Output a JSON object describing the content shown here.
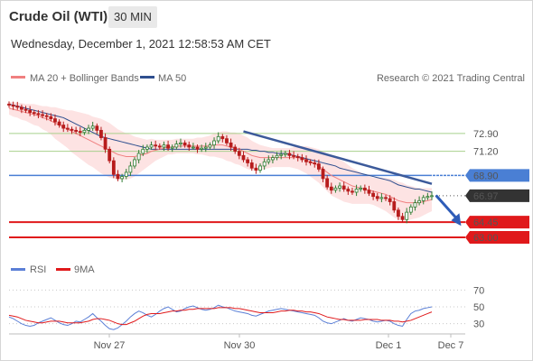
{
  "header": {
    "title": "Crude Oil (WTI)",
    "timeframe": "30 MIN"
  },
  "datetime": "Wednesday, December 1, 2021 12:58:53 AM CET",
  "legend": {
    "ma20": "MA 20 + Bollinger Bands",
    "ma50": "MA 50",
    "credit": "Research © 2021 Trading Central",
    "rsi": "RSI",
    "rsi_ma": "9MA"
  },
  "colors": {
    "ma20": "#f08080",
    "ma50": "#2f4f8f",
    "band": "#fde3e3",
    "support": "#e0191b",
    "pivot": "#4a7fd4",
    "resistance": "#a8d08d",
    "current": "#333333",
    "trend": "#3c5a9a",
    "bull": "#2e7d32",
    "bear": "#b71c1c",
    "rsi": "#5b7fd6",
    "rsi_ma": "#e0191b"
  },
  "chart_data": {
    "type": "candlestick",
    "instrument": "Crude Oil (WTI)",
    "interval": "30 MIN",
    "ylim": [
      61.8,
      76.5
    ],
    "x_ticks": [
      "Nov 27",
      "Nov 30",
      "Dec 1",
      "Dec 7"
    ],
    "levels": [
      {
        "label": "72.90",
        "value": 72.9,
        "kind": "resistance"
      },
      {
        "label": "71.20",
        "value": 71.2,
        "kind": "resistance"
      },
      {
        "label": "68.90",
        "value": 68.9,
        "kind": "pivot"
      },
      {
        "label": "66.97",
        "value": 66.97,
        "kind": "current"
      },
      {
        "label": "64.45",
        "value": 64.45,
        "kind": "support"
      },
      {
        "label": "63.00",
        "value": 63.0,
        "kind": "support"
      }
    ],
    "close": [
      75.6,
      75.5,
      75.4,
      75.2,
      75.1,
      74.9,
      74.8,
      74.7,
      74.6,
      74.5,
      74.3,
      74.0,
      73.7,
      73.4,
      73.3,
      73.2,
      73.1,
      73.0,
      73.2,
      73.4,
      73.6,
      73.2,
      72.5,
      71.4,
      70.3,
      69.0,
      68.6,
      68.8,
      69.2,
      69.8,
      70.4,
      71.0,
      71.4,
      71.6,
      71.8,
      71.7,
      71.6,
      71.8,
      71.5,
      71.6,
      71.9,
      72.0,
      71.8,
      71.6,
      71.6,
      71.4,
      71.5,
      71.6,
      71.8,
      72.2,
      72.6,
      72.4,
      72.0,
      71.6,
      71.2,
      70.8,
      70.4,
      70.1,
      69.6,
      69.4,
      69.8,
      70.2,
      70.4,
      70.6,
      70.8,
      70.9,
      71.0,
      70.8,
      70.7,
      70.6,
      70.4,
      70.2,
      70.1,
      70.0,
      69.5,
      68.6,
      67.8,
      67.5,
      67.7,
      67.9,
      67.6,
      67.4,
      67.3,
      67.6,
      67.7,
      67.5,
      67.2,
      66.9,
      66.7,
      66.8,
      66.7,
      66.4,
      65.6,
      65.0,
      64.7,
      65.4,
      65.9,
      66.3,
      66.5,
      66.8,
      66.9,
      66.97
    ],
    "ma20": [
      75.3,
      75.2,
      75.1,
      75.0,
      74.9,
      74.8,
      74.7,
      74.6,
      74.4,
      74.3,
      74.1,
      73.9,
      73.7,
      73.5,
      73.3,
      73.1,
      72.9,
      72.7,
      72.5,
      72.3,
      72.1,
      71.9,
      71.7,
      71.5,
      71.3,
      71.1,
      70.9,
      70.8,
      70.7,
      70.7,
      70.7,
      70.8,
      70.9,
      71.0,
      71.2,
      71.3,
      71.4,
      71.5,
      71.6,
      71.6,
      71.7,
      71.7,
      71.7,
      71.7,
      71.7,
      71.7,
      71.7,
      71.7,
      71.7,
      71.8,
      71.8,
      71.8,
      71.7,
      71.6,
      71.5,
      71.4,
      71.2,
      71.0,
      70.8,
      70.7,
      70.6,
      70.6,
      70.6,
      70.6,
      70.6,
      70.6,
      70.6,
      70.6,
      70.6,
      70.6,
      70.5,
      70.4,
      70.2,
      70.0,
      69.8,
      69.5,
      69.2,
      68.9,
      68.7,
      68.5,
      68.3,
      68.1,
      67.9,
      67.8,
      67.7,
      67.6,
      67.5,
      67.4,
      67.3,
      67.2,
      67.1,
      66.9,
      66.7,
      66.5,
      66.4,
      66.3,
      66.3,
      66.3,
      66.3,
      66.4,
      66.5,
      66.6
    ],
    "ma50": [
      75.7,
      75.6,
      75.5,
      75.4,
      75.3,
      75.2,
      75.1,
      75.0,
      74.9,
      74.8,
      74.7,
      74.6,
      74.5,
      74.4,
      74.2,
      74.0,
      73.8,
      73.6,
      73.4,
      73.2,
      73.0,
      72.8,
      72.6,
      72.5,
      72.4,
      72.3,
      72.2,
      72.1,
      72.0,
      71.9,
      71.8,
      71.7,
      71.6,
      71.5,
      71.4,
      71.4,
      71.4,
      71.4,
      71.4,
      71.4,
      71.4,
      71.4,
      71.4,
      71.4,
      71.4,
      71.4,
      71.4,
      71.4,
      71.4,
      71.4,
      71.4,
      71.4,
      71.4,
      71.4,
      71.4,
      71.4,
      71.4,
      71.4,
      71.3,
      71.3,
      71.2,
      71.2,
      71.1,
      71.1,
      71.0,
      71.0,
      71.0,
      70.9,
      70.8,
      70.7,
      70.6,
      70.5,
      70.4,
      70.3,
      70.2,
      70.1,
      70.0,
      69.9,
      69.8,
      69.6,
      69.5,
      69.4,
      69.3,
      69.2,
      69.1,
      69.0,
      68.9,
      68.8,
      68.7,
      68.6,
      68.5,
      68.4,
      68.2,
      68.0,
      67.9,
      67.8,
      67.7,
      67.6,
      67.6,
      67.5,
      67.4,
      67.3
    ],
    "band_width": [
      0.6,
      0.7,
      0.7,
      0.8,
      0.8,
      0.9,
      1.0,
      1.0,
      1.1,
      1.2,
      1.3,
      1.5,
      1.6,
      1.7,
      1.8,
      2.0,
      2.1,
      2.2,
      2.3,
      2.4,
      2.4,
      2.5,
      2.6,
      2.6,
      2.6,
      2.5,
      2.4,
      2.3,
      2.2,
      2.1,
      1.9,
      1.7,
      1.5,
      1.3,
      1.2,
      1.0,
      0.9,
      0.8,
      0.7,
      0.7,
      0.7,
      0.7,
      0.7,
      0.7,
      0.7,
      0.8,
      0.8,
      0.9,
      1.0,
      1.1,
      1.2,
      1.3,
      1.4,
      1.4,
      1.5,
      1.5,
      1.5,
      1.5,
      1.4,
      1.3,
      1.2,
      1.1,
      1.0,
      0.9,
      0.9,
      0.9,
      0.9,
      0.9,
      1.0,
      1.1,
      1.2,
      1.3,
      1.4,
      1.5,
      1.6,
      1.7,
      1.8,
      1.9,
      1.9,
      1.9,
      1.9,
      1.8,
      1.7,
      1.6,
      1.5,
      1.4,
      1.3,
      1.3,
      1.4,
      1.5,
      1.6,
      1.7,
      1.8,
      1.8,
      1.8,
      1.7,
      1.6,
      1.5,
      1.4,
      1.3,
      1.2,
      1.1
    ],
    "trend_line": {
      "from": [
        56,
        73.1
      ],
      "to": [
        101,
        68.1
      ]
    },
    "forecast_arrow": {
      "from": [
        102,
        67.0
      ],
      "to": [
        108,
        64.1
      ]
    },
    "rsi": {
      "ylim": [
        20,
        80
      ],
      "ticks": [
        70,
        50,
        30
      ],
      "values": [
        38,
        36,
        33,
        30,
        28,
        27,
        28,
        31,
        33,
        35,
        37,
        34,
        31,
        29,
        28,
        30,
        33,
        32,
        35,
        38,
        42,
        37,
        33,
        28,
        24,
        23,
        25,
        29,
        33,
        38,
        42,
        45,
        43,
        40,
        38,
        41,
        45,
        48,
        50,
        47,
        44,
        45,
        48,
        50,
        51,
        49,
        47,
        46,
        47,
        49,
        52,
        50,
        49,
        47,
        45,
        44,
        43,
        42,
        40,
        39,
        41,
        43,
        45,
        46,
        47,
        48,
        47,
        46,
        45,
        44,
        43,
        42,
        41,
        40,
        37,
        33,
        31,
        30,
        32,
        34,
        36,
        34,
        33,
        35,
        37,
        36,
        35,
        33,
        32,
        33,
        34,
        33,
        30,
        28,
        27,
        35,
        42,
        45,
        46,
        48,
        49,
        50
      ],
      "ma": [
        40,
        39,
        38,
        36,
        34,
        33,
        32,
        31,
        31,
        32,
        33,
        33,
        33,
        32,
        31,
        31,
        31,
        31,
        32,
        33,
        35,
        36,
        36,
        35,
        34,
        32,
        30,
        29,
        29,
        31,
        33,
        36,
        39,
        41,
        42,
        42,
        42,
        43,
        44,
        45,
        45,
        46,
        46,
        47,
        47,
        48,
        48,
        48,
        48,
        48,
        49,
        49,
        49,
        49,
        48,
        48,
        47,
        46,
        45,
        44,
        43,
        43,
        43,
        43,
        44,
        45,
        45,
        46,
        46,
        45,
        45,
        44,
        44,
        43,
        42,
        40,
        38,
        37,
        36,
        35,
        35,
        34,
        34,
        34,
        34,
        35,
        35,
        35,
        35,
        34,
        34,
        34,
        33,
        33,
        32,
        33,
        34,
        36,
        38,
        40,
        42,
        44
      ]
    }
  }
}
